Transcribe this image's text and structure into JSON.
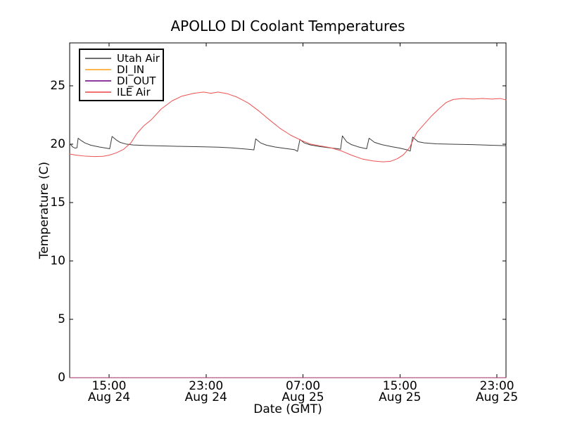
{
  "figure": {
    "background": "#ffffff"
  },
  "chart_data": {
    "type": "line",
    "title": "APOLLO DI Coolant Temperatures",
    "xlabel": "Date (GMT)",
    "ylabel": "Temperature (C)",
    "x_unit": "hours since Aug 24 12:00 GMT",
    "xlim": [
      -0.25,
      35.75
    ],
    "ylim": [
      0,
      28.66
    ],
    "grid": false,
    "tick_direction": "in",
    "y_ticks": [
      0,
      5,
      10,
      15,
      20,
      25
    ],
    "x_ticks": [
      {
        "t": 3,
        "time": "15:00",
        "date": "Aug 24"
      },
      {
        "t": 11,
        "time": "23:00",
        "date": "Aug 24"
      },
      {
        "t": 19,
        "time": "07:00",
        "date": "Aug 25"
      },
      {
        "t": 27,
        "time": "15:00",
        "date": "Aug 25"
      },
      {
        "t": 35,
        "time": "23:00",
        "date": "Aug 25"
      }
    ],
    "legend": {
      "position": "upper left"
    },
    "series": [
      {
        "name": "Utah Air",
        "color": "#3c3c3c",
        "legend_color": "#6e6e6e",
        "width": 1,
        "opacity": 1,
        "points": [
          [
            -0.25,
            20.05
          ],
          [
            0.0,
            19.75
          ],
          [
            0.2,
            19.65
          ],
          [
            0.35,
            19.68
          ],
          [
            0.45,
            20.5
          ],
          [
            0.7,
            20.3
          ],
          [
            1.0,
            20.1
          ],
          [
            1.5,
            19.9
          ],
          [
            2.2,
            19.75
          ],
          [
            2.9,
            19.63
          ],
          [
            3.05,
            19.6
          ],
          [
            3.25,
            20.65
          ],
          [
            3.6,
            20.35
          ],
          [
            3.9,
            20.15
          ],
          [
            4.4,
            20.0
          ],
          [
            5.0,
            19.92
          ],
          [
            6.0,
            19.88
          ],
          [
            7.5,
            19.84
          ],
          [
            9.0,
            19.8
          ],
          [
            10.5,
            19.77
          ],
          [
            12.0,
            19.73
          ],
          [
            13.0,
            19.68
          ],
          [
            14.0,
            19.6
          ],
          [
            14.8,
            19.52
          ],
          [
            14.95,
            19.5
          ],
          [
            15.1,
            20.45
          ],
          [
            15.5,
            20.1
          ],
          [
            16.0,
            19.9
          ],
          [
            16.7,
            19.75
          ],
          [
            17.5,
            19.63
          ],
          [
            18.3,
            19.52
          ],
          [
            18.55,
            19.38
          ],
          [
            18.75,
            20.4
          ],
          [
            19.1,
            20.1
          ],
          [
            19.6,
            19.93
          ],
          [
            20.3,
            19.8
          ],
          [
            21.0,
            19.7
          ],
          [
            21.9,
            19.6
          ],
          [
            22.1,
            19.55
          ],
          [
            22.25,
            20.7
          ],
          [
            22.6,
            20.2
          ],
          [
            23.0,
            19.95
          ],
          [
            23.6,
            19.75
          ],
          [
            24.0,
            19.65
          ],
          [
            24.25,
            19.6
          ],
          [
            24.45,
            20.5
          ],
          [
            24.9,
            20.15
          ],
          [
            25.5,
            19.95
          ],
          [
            26.3,
            19.78
          ],
          [
            27.0,
            19.65
          ],
          [
            27.6,
            19.5
          ],
          [
            27.85,
            19.4
          ],
          [
            28.05,
            20.6
          ],
          [
            28.5,
            20.2
          ],
          [
            29.0,
            20.1
          ],
          [
            30.0,
            20.02
          ],
          [
            31.5,
            19.98
          ],
          [
            33.0,
            19.95
          ],
          [
            34.5,
            19.9
          ],
          [
            35.75,
            19.86
          ]
        ]
      },
      {
        "name": "DI_IN",
        "color": "#ffa500",
        "legend_color": "#ffb84d",
        "width": 1,
        "opacity": 1,
        "points": [
          [
            -0.25,
            0
          ],
          [
            35.75,
            0
          ]
        ]
      },
      {
        "name": "DI_OUT",
        "color": "#800080",
        "legend_color": "#8e3a9e",
        "width": 1,
        "opacity": 0.75,
        "points": [
          [
            -0.25,
            0
          ],
          [
            35.75,
            0
          ]
        ]
      },
      {
        "name": "ILE Air",
        "color": "#ee5050",
        "legend_color": "#f37070",
        "width": 1,
        "opacity": 1,
        "points": [
          [
            -0.25,
            19.15
          ],
          [
            0.3,
            19.05
          ],
          [
            1.0,
            18.97
          ],
          [
            1.8,
            18.93
          ],
          [
            2.5,
            18.95
          ],
          [
            3.0,
            19.05
          ],
          [
            3.6,
            19.25
          ],
          [
            4.2,
            19.55
          ],
          [
            4.8,
            20.1
          ],
          [
            5.3,
            20.9
          ],
          [
            5.85,
            21.55
          ],
          [
            6.5,
            22.1
          ],
          [
            7.3,
            23.0
          ],
          [
            8.2,
            23.7
          ],
          [
            9.0,
            24.1
          ],
          [
            10.0,
            24.35
          ],
          [
            10.8,
            24.45
          ],
          [
            11.4,
            24.35
          ],
          [
            12.0,
            24.45
          ],
          [
            12.8,
            24.3
          ],
          [
            13.6,
            24.0
          ],
          [
            14.5,
            23.5
          ],
          [
            15.4,
            22.8
          ],
          [
            16.2,
            22.1
          ],
          [
            17.1,
            21.35
          ],
          [
            18.0,
            20.75
          ],
          [
            18.9,
            20.3
          ],
          [
            19.6,
            20.0
          ],
          [
            20.4,
            19.85
          ],
          [
            21.3,
            19.68
          ],
          [
            22.2,
            19.4
          ],
          [
            23.0,
            19.05
          ],
          [
            23.9,
            18.72
          ],
          [
            24.8,
            18.55
          ],
          [
            25.6,
            18.48
          ],
          [
            26.2,
            18.52
          ],
          [
            26.8,
            18.75
          ],
          [
            27.3,
            19.1
          ],
          [
            27.8,
            19.7
          ],
          [
            28.1,
            20.4
          ],
          [
            28.4,
            21.0
          ],
          [
            29.0,
            21.7
          ],
          [
            29.6,
            22.4
          ],
          [
            30.2,
            23.0
          ],
          [
            30.8,
            23.55
          ],
          [
            31.4,
            23.82
          ],
          [
            32.2,
            23.9
          ],
          [
            33.0,
            23.85
          ],
          [
            33.8,
            23.9
          ],
          [
            34.6,
            23.85
          ],
          [
            35.3,
            23.9
          ],
          [
            35.75,
            23.78
          ]
        ]
      }
    ]
  }
}
